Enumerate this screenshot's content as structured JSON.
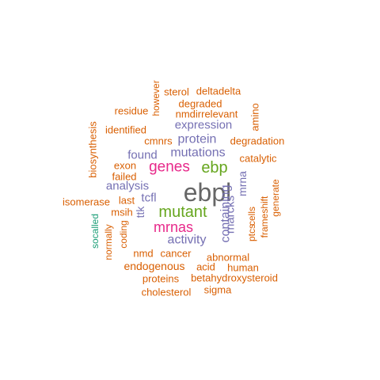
{
  "palette": {
    "orange": "#d95f02",
    "purple": "#7570b3",
    "green": "#66a61e",
    "magenta": "#e7298a",
    "teal": "#1b9e77",
    "gray": "#666666"
  },
  "words": [
    {
      "text": "ebpl",
      "color": "gray"
    },
    {
      "text": "ebp",
      "color": "green"
    },
    {
      "text": "genes",
      "color": "magenta"
    },
    {
      "text": "mutant",
      "color": "green"
    },
    {
      "text": "mrnas",
      "color": "magenta"
    },
    {
      "text": "mutations",
      "color": "purple"
    },
    {
      "text": "protein",
      "color": "purple"
    },
    {
      "text": "expression",
      "color": "purple"
    },
    {
      "text": "analysis",
      "color": "purple"
    },
    {
      "text": "activity",
      "color": "purple"
    },
    {
      "text": "found",
      "color": "purple"
    },
    {
      "text": "tcfl",
      "color": "purple"
    },
    {
      "text": "ttk",
      "color": "purple"
    },
    {
      "text": "containing",
      "color": "purple"
    },
    {
      "text": "marcks",
      "color": "purple"
    },
    {
      "text": "mrna",
      "color": "purple"
    },
    {
      "text": "sterol",
      "color": "orange"
    },
    {
      "text": "deltadelta",
      "color": "orange"
    },
    {
      "text": "however",
      "color": "orange"
    },
    {
      "text": "degraded",
      "color": "orange"
    },
    {
      "text": "residue",
      "color": "orange"
    },
    {
      "text": "amino",
      "color": "orange"
    },
    {
      "text": "nmdirrelevant",
      "color": "orange"
    },
    {
      "text": "identified",
      "color": "orange"
    },
    {
      "text": "biosynthesis",
      "color": "orange"
    },
    {
      "text": "cmnrs",
      "color": "orange"
    },
    {
      "text": "degradation",
      "color": "orange"
    },
    {
      "text": "catalytic",
      "color": "orange"
    },
    {
      "text": "exon",
      "color": "orange"
    },
    {
      "text": "failed",
      "color": "orange"
    },
    {
      "text": "generate",
      "color": "orange"
    },
    {
      "text": "isomerase",
      "color": "orange"
    },
    {
      "text": "last",
      "color": "orange"
    },
    {
      "text": "msih",
      "color": "orange"
    },
    {
      "text": "frameshift",
      "color": "orange"
    },
    {
      "text": "ptcs",
      "color": "orange"
    },
    {
      "text": "cells",
      "color": "orange"
    },
    {
      "text": "socalled",
      "color": "teal"
    },
    {
      "text": "normally",
      "color": "orange"
    },
    {
      "text": "coding",
      "color": "orange"
    },
    {
      "text": "nmd",
      "color": "orange"
    },
    {
      "text": "cancer",
      "color": "orange"
    },
    {
      "text": "abnormal",
      "color": "orange"
    },
    {
      "text": "endogenous",
      "color": "orange"
    },
    {
      "text": "acid",
      "color": "orange"
    },
    {
      "text": "human",
      "color": "orange"
    },
    {
      "text": "proteins",
      "color": "orange"
    },
    {
      "text": "betahydroxysteroid",
      "color": "orange"
    },
    {
      "text": "cholesterol",
      "color": "orange"
    },
    {
      "text": "sigma",
      "color": "orange"
    }
  ]
}
